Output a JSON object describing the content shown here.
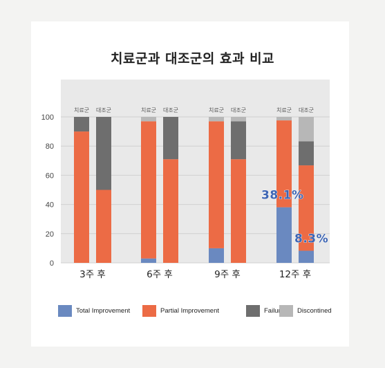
{
  "title": "치료군과 대조군의 효과 비교",
  "colors": {
    "total": "#6a89c0",
    "partial": "#ec6b45",
    "failure": "#6e6e6e",
    "discontinued": "#b7b7b7",
    "plot_bg": "#e9e9e9",
    "callout": "#3d65b4"
  },
  "chart_data": {
    "type": "bar",
    "stacked": true,
    "title": "치료군과 대조군의 효과 비교",
    "categories": [
      "3주 후",
      "6주 후",
      "9주 후",
      "12주 후"
    ],
    "groups": [
      "치료군",
      "대조군"
    ],
    "ylim": [
      0,
      100
    ],
    "yticks": [
      0,
      20,
      40,
      60,
      80,
      100
    ],
    "grid": true,
    "legend_position": "bottom",
    "series": [
      {
        "name": "Total Improvement",
        "color_key": "total",
        "values": {
          "치료군": [
            0,
            3,
            10,
            38.1
          ],
          "대조군": [
            0,
            0,
            0,
            8.3
          ]
        }
      },
      {
        "name": "Partial Improvement",
        "color_key": "partial",
        "values": {
          "치료군": [
            90,
            94,
            87,
            59.5
          ],
          "대조군": [
            50,
            71,
            71,
            58.5
          ]
        }
      },
      {
        "name": "Failure",
        "color_key": "failure",
        "values": {
          "치료군": [
            10,
            0,
            0,
            0
          ],
          "대조군": [
            50,
            29,
            26,
            16.5
          ]
        }
      },
      {
        "name": "Discontined",
        "color_key": "discontinued",
        "values": {
          "치료군": [
            0,
            3,
            3,
            2.4
          ],
          "대조군": [
            0,
            0,
            3,
            16.7
          ]
        }
      }
    ],
    "annotations": [
      {
        "text": "38.1%",
        "category": "12주 후",
        "group": "치료군"
      },
      {
        "text": "8.3%",
        "category": "12주 후",
        "group": "대조군"
      }
    ]
  }
}
